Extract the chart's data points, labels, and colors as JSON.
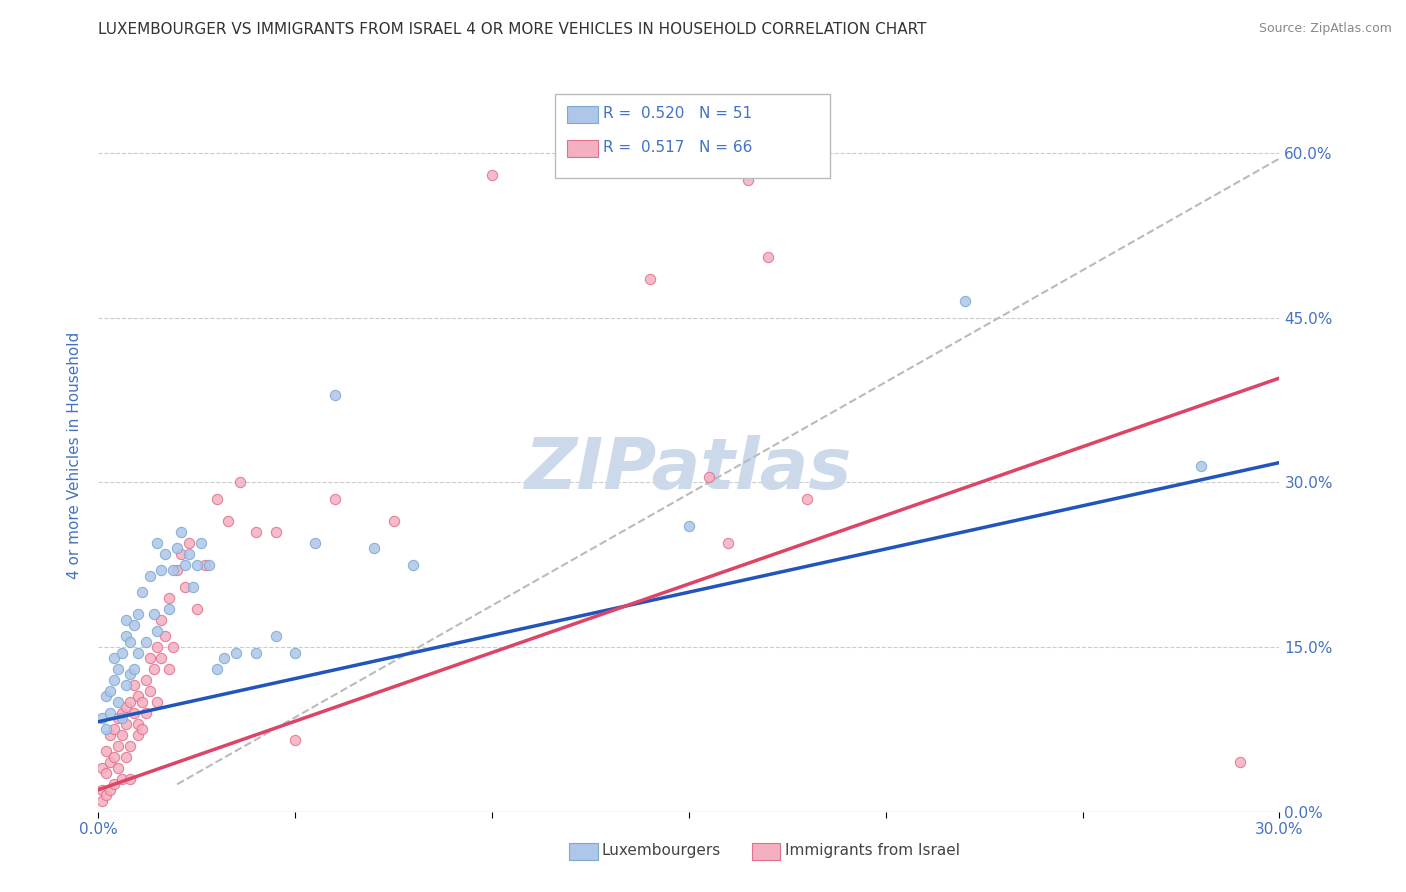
{
  "title": "LUXEMBOURGER VS IMMIGRANTS FROM ISRAEL 4 OR MORE VEHICLES IN HOUSEHOLD CORRELATION CHART",
  "source": "Source: ZipAtlas.com",
  "ylabel_label": "4 or more Vehicles in Household",
  "legend_entries": [
    {
      "label": "Luxembourgers",
      "color": "#aec6e8",
      "edge_color": "#7aaad0",
      "R": "0.520",
      "N": "51"
    },
    {
      "label": "Immigrants from Israel",
      "color": "#f4b0c0",
      "edge_color": "#e07090",
      "R": "0.517",
      "N": "66"
    }
  ],
  "blue_scatter_x": [
    0.001,
    0.002,
    0.002,
    0.003,
    0.003,
    0.004,
    0.004,
    0.005,
    0.005,
    0.006,
    0.006,
    0.007,
    0.007,
    0.007,
    0.008,
    0.008,
    0.009,
    0.009,
    0.01,
    0.01,
    0.011,
    0.012,
    0.013,
    0.014,
    0.015,
    0.015,
    0.016,
    0.017,
    0.018,
    0.019,
    0.02,
    0.021,
    0.022,
    0.023,
    0.024,
    0.025,
    0.026,
    0.028,
    0.03,
    0.032,
    0.035,
    0.04,
    0.045,
    0.05,
    0.055,
    0.06,
    0.07,
    0.08,
    0.15,
    0.22,
    0.28
  ],
  "blue_scatter_y": [
    0.085,
    0.105,
    0.075,
    0.09,
    0.11,
    0.12,
    0.14,
    0.1,
    0.13,
    0.085,
    0.145,
    0.16,
    0.115,
    0.175,
    0.155,
    0.125,
    0.17,
    0.13,
    0.18,
    0.145,
    0.2,
    0.155,
    0.215,
    0.18,
    0.245,
    0.165,
    0.22,
    0.235,
    0.185,
    0.22,
    0.24,
    0.255,
    0.225,
    0.235,
    0.205,
    0.225,
    0.245,
    0.225,
    0.13,
    0.14,
    0.145,
    0.145,
    0.16,
    0.145,
    0.245,
    0.38,
    0.24,
    0.225,
    0.26,
    0.465,
    0.315
  ],
  "pink_scatter_x": [
    0.001,
    0.001,
    0.001,
    0.002,
    0.002,
    0.002,
    0.003,
    0.003,
    0.003,
    0.004,
    0.004,
    0.004,
    0.005,
    0.005,
    0.005,
    0.006,
    0.006,
    0.006,
    0.007,
    0.007,
    0.007,
    0.008,
    0.008,
    0.008,
    0.009,
    0.009,
    0.01,
    0.01,
    0.01,
    0.011,
    0.011,
    0.012,
    0.012,
    0.013,
    0.013,
    0.014,
    0.015,
    0.015,
    0.016,
    0.016,
    0.017,
    0.018,
    0.018,
    0.019,
    0.02,
    0.021,
    0.022,
    0.023,
    0.025,
    0.027,
    0.03,
    0.033,
    0.036,
    0.04,
    0.045,
    0.05,
    0.06,
    0.075,
    0.1,
    0.14,
    0.155,
    0.16,
    0.165,
    0.17,
    0.18,
    0.29
  ],
  "pink_scatter_y": [
    0.02,
    0.04,
    0.01,
    0.035,
    0.055,
    0.015,
    0.045,
    0.07,
    0.02,
    0.05,
    0.075,
    0.025,
    0.06,
    0.04,
    0.085,
    0.07,
    0.03,
    0.09,
    0.08,
    0.05,
    0.095,
    0.1,
    0.06,
    0.03,
    0.09,
    0.115,
    0.08,
    0.105,
    0.07,
    0.1,
    0.075,
    0.12,
    0.09,
    0.14,
    0.11,
    0.13,
    0.15,
    0.1,
    0.175,
    0.14,
    0.16,
    0.13,
    0.195,
    0.15,
    0.22,
    0.235,
    0.205,
    0.245,
    0.185,
    0.225,
    0.285,
    0.265,
    0.3,
    0.255,
    0.255,
    0.065,
    0.285,
    0.265,
    0.58,
    0.485,
    0.305,
    0.245,
    0.575,
    0.505,
    0.285,
    0.045
  ],
  "blue_line": {
    "x0": 0.0,
    "y0": 0.082,
    "x1": 0.3,
    "y1": 0.318
  },
  "pink_line": {
    "x0": 0.0,
    "y0": 0.02,
    "x1": 0.3,
    "y1": 0.395
  },
  "gray_dashed_line": {
    "x0": 0.02,
    "y0": 0.025,
    "x1": 0.3,
    "y1": 0.595
  },
  "title_fontsize": 11,
  "source_fontsize": 9,
  "axis_color": "#4472c4",
  "background_color": "#ffffff",
  "watermark": "ZIPatlas",
  "watermark_color": "#ccd9eb",
  "xlim": [
    0,
    0.3
  ],
  "ylim": [
    0,
    0.65
  ],
  "ytick_vals": [
    0.0,
    0.15,
    0.3,
    0.45,
    0.6
  ]
}
